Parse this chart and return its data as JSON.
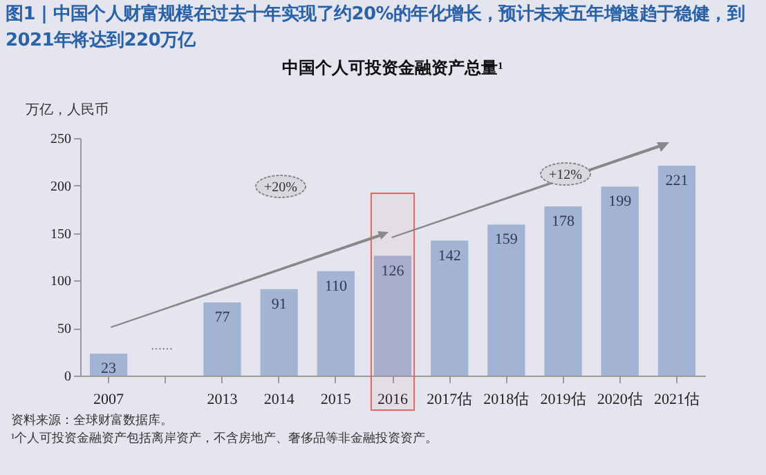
{
  "chart_data": {
    "type": "bar",
    "title": "图1 |  中国个人财富规模在过去十年实现了约20%的年化增长，预计未来五年增速趋于稳健，到2021年将达到220万亿",
    "subtitle": "中国个人可投资金融资产总量¹",
    "ylabel": "万亿，人民币",
    "categories": [
      "2007",
      null,
      "2013",
      "2014",
      "2015",
      "2016",
      "2017估",
      "2018估",
      "2019估",
      "2020估",
      "2021估"
    ],
    "values": [
      23,
      null,
      77,
      91,
      110,
      126,
      142,
      159,
      178,
      199,
      221
    ],
    "color": "#a3b3d3",
    "bands": [
      {
        "axis": "x",
        "from": "2016",
        "to": "2016",
        "color": "#dd6666"
      }
    ],
    "ylim": [
      0,
      250
    ],
    "yticks": [
      0,
      50,
      100,
      150,
      200,
      250
    ],
    "data_labels": true,
    "annotations": [
      "+20%",
      "+12%",
      "……",
      "资料来源：全球财富数据库。",
      "¹个人可投资金融资产包括离岸资产，不含房地产、奢侈品等非金融投资资产。"
    ]
  }
}
